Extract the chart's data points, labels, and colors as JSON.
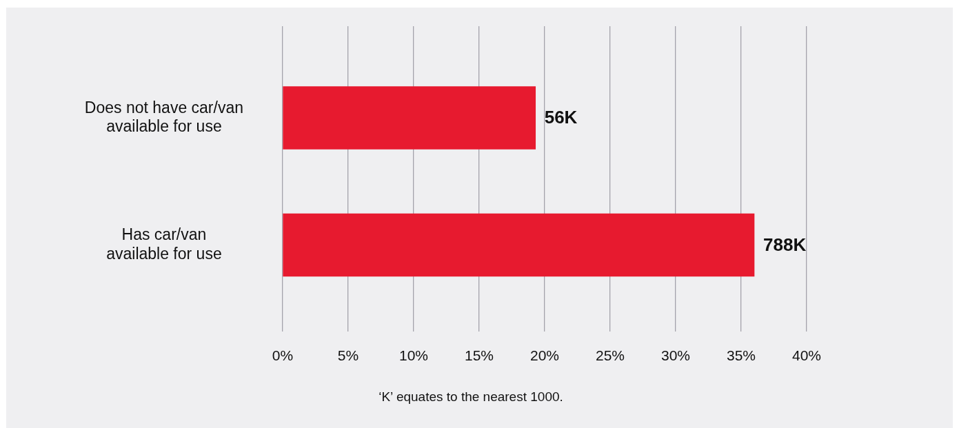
{
  "chart_data": {
    "type": "bar",
    "orientation": "horizontal",
    "categories": [
      "Does not have car/van available for use",
      "Has car/van available for use"
    ],
    "values": [
      19.3,
      36.0
    ],
    "color": "#e71a2f",
    "xlim": [
      0,
      40
    ],
    "xticks": [
      {
        "value": 0,
        "label": "0%"
      },
      {
        "value": 5,
        "label": "5%"
      },
      {
        "value": 10,
        "label": "10%"
      },
      {
        "value": 15,
        "label": "15%"
      },
      {
        "value": 20,
        "label": "20%"
      },
      {
        "value": 25,
        "label": "25%"
      },
      {
        "value": 30,
        "label": "30%"
      },
      {
        "value": 35,
        "label": "35%"
      },
      {
        "value": 40,
        "label": "40%"
      }
    ],
    "grid": "x",
    "annotations": [
      {
        "text": "56K",
        "x": 19.3,
        "y": "Does not have car/van available for use"
      },
      {
        "text": "788K",
        "x": 36.0,
        "y": "Has car/van available for use"
      },
      "‘K’ equates to the nearest 1000."
    ]
  }
}
